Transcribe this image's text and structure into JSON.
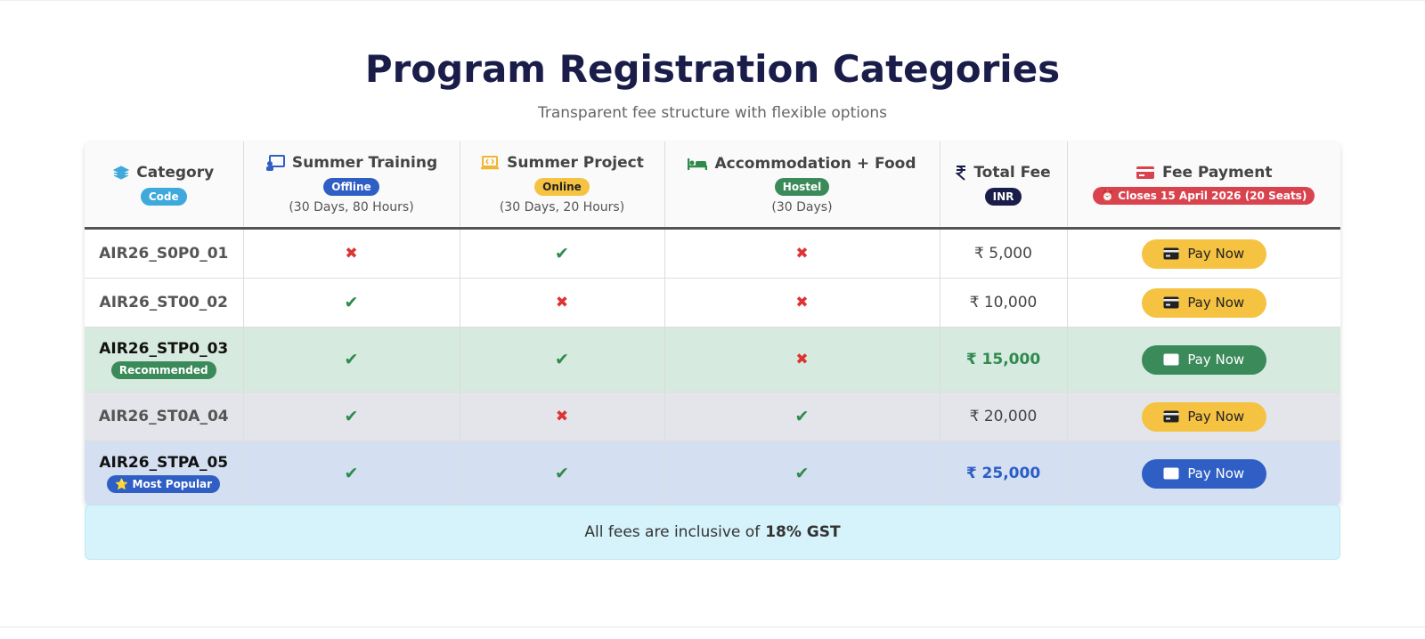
{
  "header": {
    "title": "Program Registration Categories",
    "subtitle": "Transparent fee structure with flexible options"
  },
  "table": {
    "columns": [
      {
        "title": "Category",
        "badge": "Code"
      },
      {
        "title": "Summer Training",
        "badge": "Offline",
        "note": "(30 Days, 80 Hours)"
      },
      {
        "title": "Summer Project",
        "badge": "Online",
        "note": "(30 Days, 20 Hours)"
      },
      {
        "title": "Accommodation + Food",
        "badge": "Hostel",
        "note": "(30 Days)"
      },
      {
        "title": "Total Fee",
        "badge": "INR"
      },
      {
        "title": "Fee Payment",
        "badge": "⏰ Closes 15 April 2026 (20 Seats)"
      }
    ],
    "rows": [
      {
        "code": "AIR26_S0P0_01",
        "training": "✖",
        "project": "✔",
        "accommodation": "✖",
        "fee": "₹ 5,000",
        "action": "Pay Now"
      },
      {
        "code": "AIR26_ST00_02",
        "training": "✔",
        "project": "✖",
        "accommodation": "✖",
        "fee": "₹ 10,000",
        "action": "Pay Now"
      },
      {
        "code": "AIR26_STP0_03",
        "tag": "Recommended",
        "training": "✔",
        "project": "✔",
        "accommodation": "✖",
        "fee": "₹ 15,000",
        "action": "Pay Now"
      },
      {
        "code": "AIR26_ST0A_04",
        "training": "✔",
        "project": "✖",
        "accommodation": "✔",
        "fee": "₹ 20,000",
        "action": "Pay Now"
      },
      {
        "code": "AIR26_STPA_05",
        "tag": "⭐ Most Popular",
        "training": "✔",
        "project": "✔",
        "accommodation": "✔",
        "fee": "₹ 25,000",
        "action": "Pay Now"
      }
    ]
  },
  "note": {
    "text": "All fees are inclusive of",
    "bold": "18% GST"
  }
}
